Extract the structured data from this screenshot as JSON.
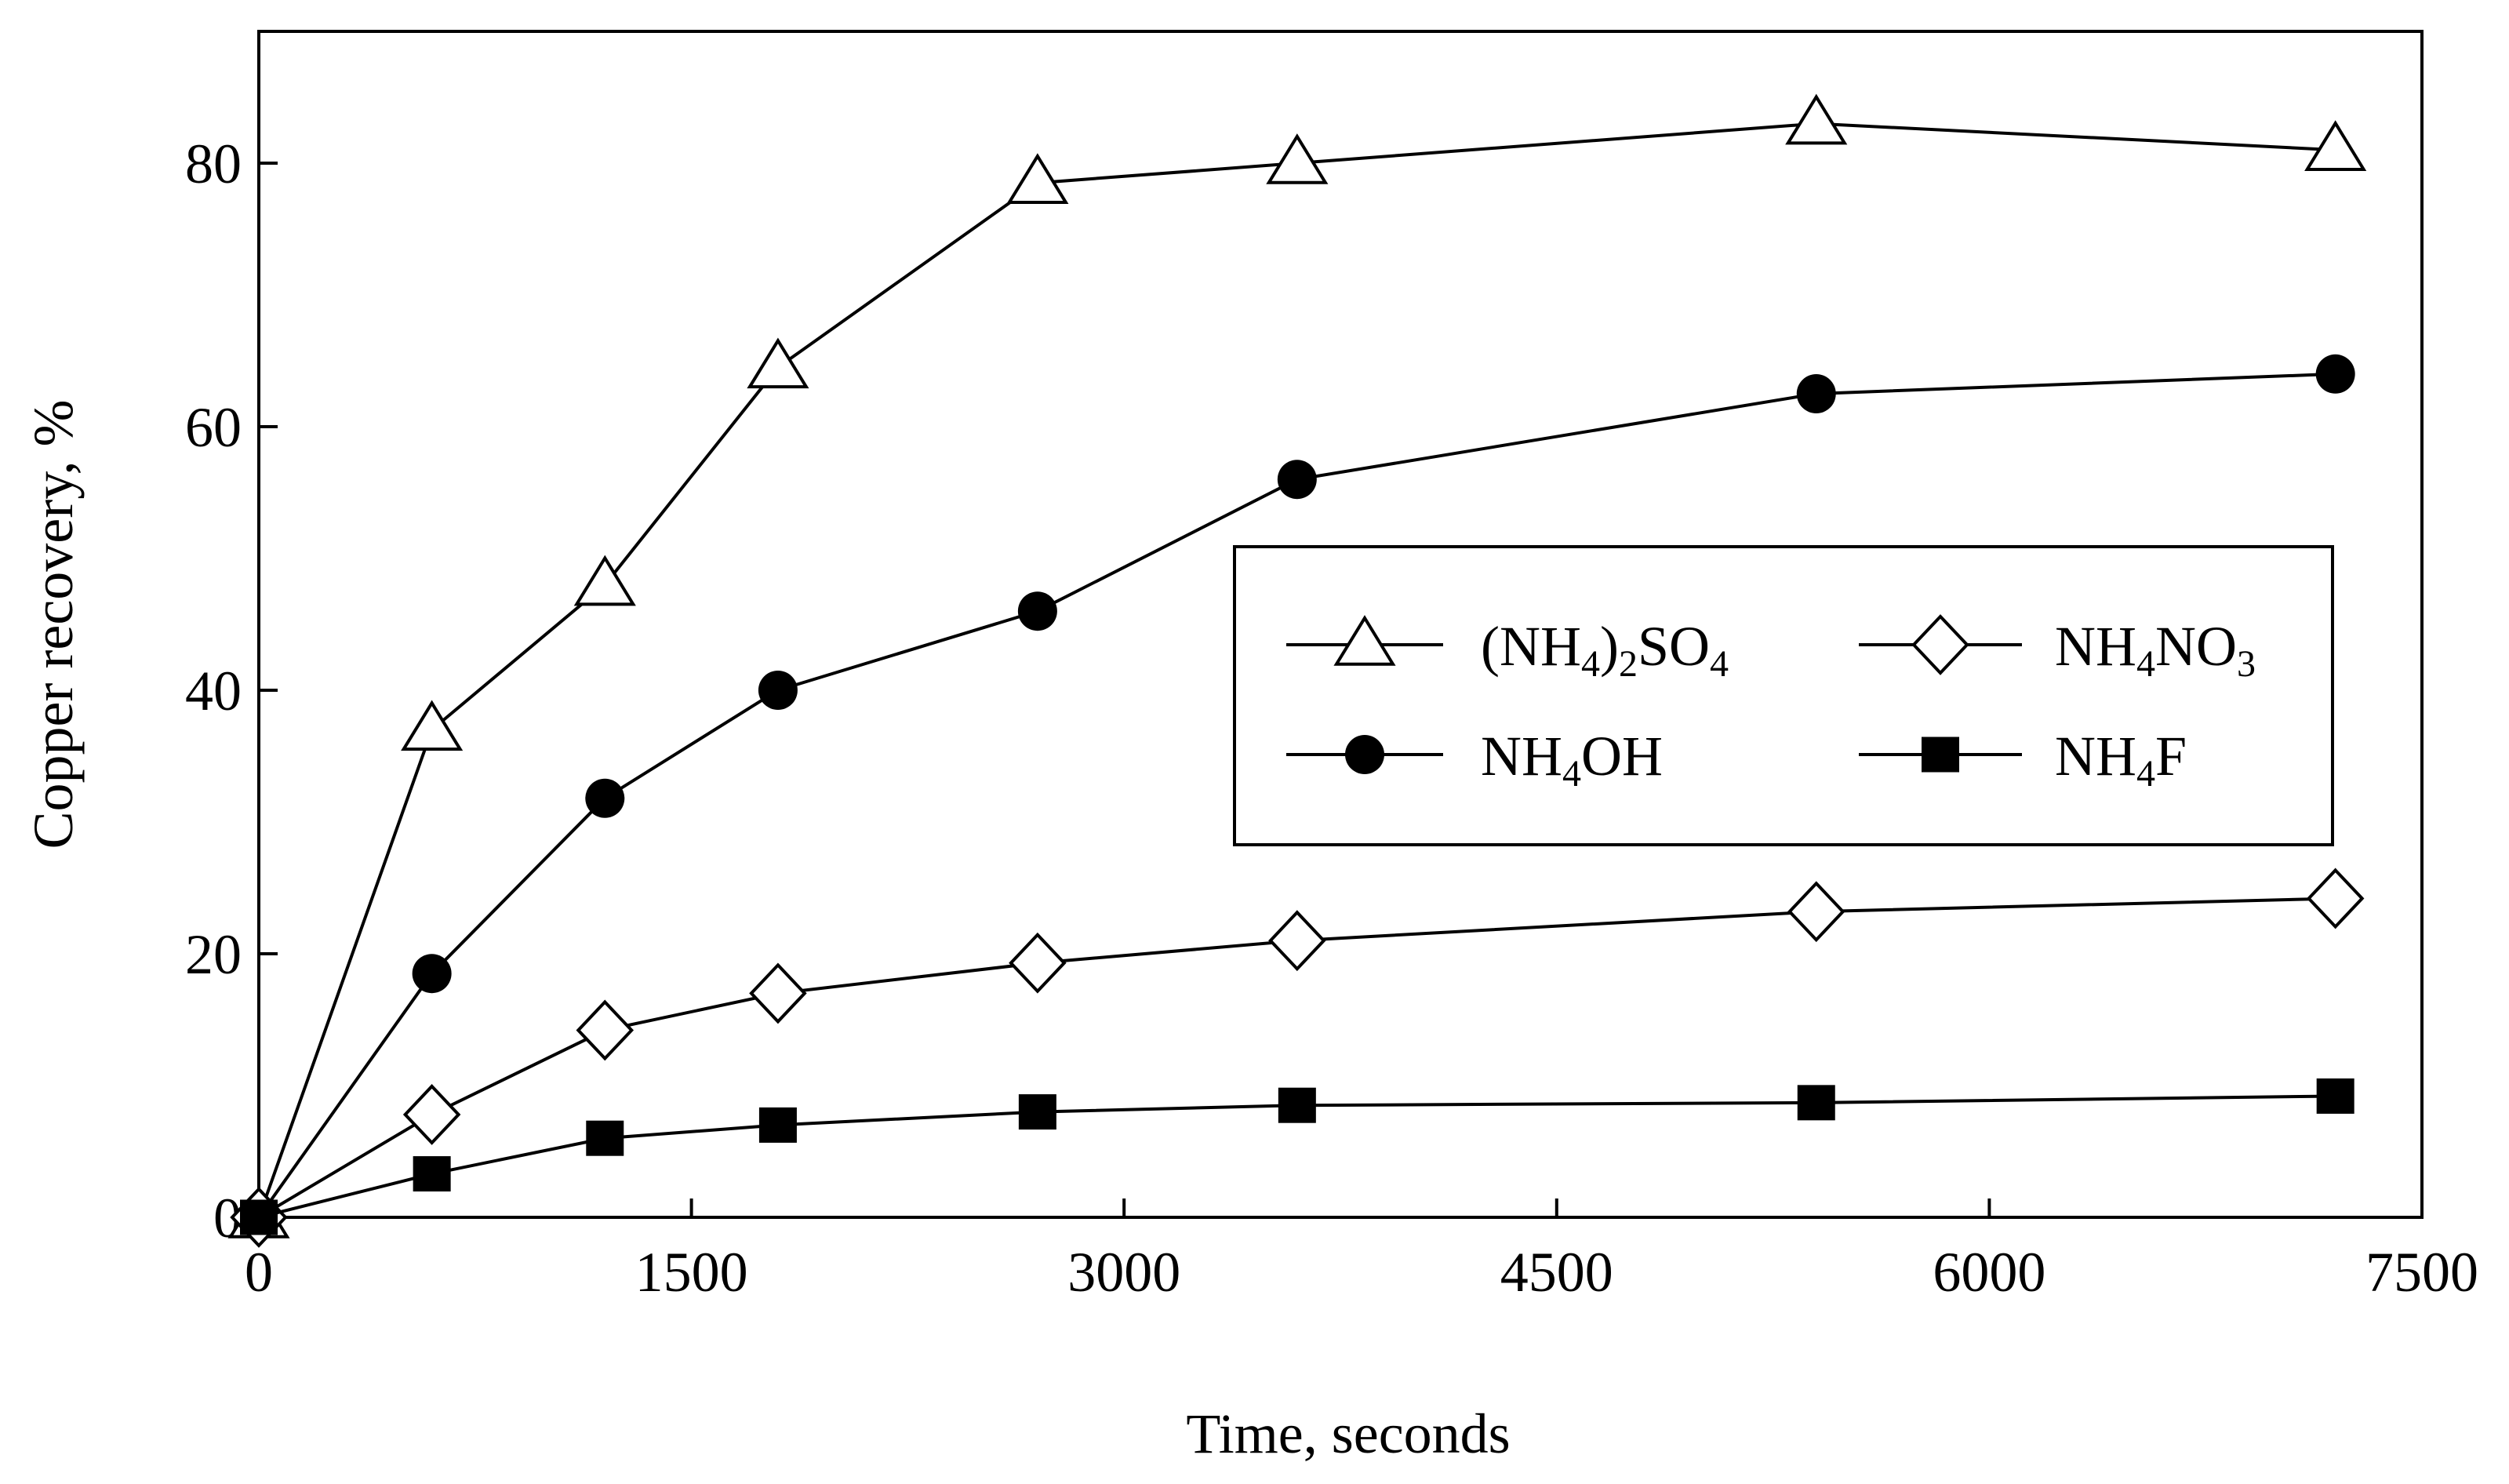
{
  "chart_data": {
    "type": "line",
    "title": "",
    "xlabel": "Time, seconds",
    "ylabel": "Copper recovery, %",
    "xlim": [
      0,
      7500
    ],
    "ylim": [
      0,
      90
    ],
    "xticks": [
      0,
      1500,
      3000,
      4500,
      6000,
      7500
    ],
    "yticks": [
      0,
      20,
      40,
      60,
      80
    ],
    "xtick_labels": [
      "0",
      "1500",
      "3000",
      "4500",
      "6000",
      "7500"
    ],
    "ytick_labels": [
      "0",
      "20",
      "40",
      "60",
      "80"
    ],
    "grid": false,
    "legend_position": "center-right",
    "series": [
      {
        "id": "nh4-2so4",
        "name": "(NH4)2SO4",
        "label_parts": [
          [
            "(NH",
            "normal"
          ],
          [
            "4",
            "sub"
          ],
          [
            ")",
            "normal"
          ],
          [
            "2",
            "sub"
          ],
          [
            "SO",
            "normal"
          ],
          [
            "4",
            "sub"
          ]
        ],
        "marker": "triangle-open",
        "x": [
          0,
          600,
          1200,
          1800,
          2700,
          3600,
          5400,
          7200
        ],
        "y": [
          0,
          37,
          48,
          64.5,
          78.5,
          80,
          83,
          81
        ]
      },
      {
        "id": "nh4oh",
        "name": "NH4OH",
        "label_parts": [
          [
            "NH",
            "normal"
          ],
          [
            "4",
            "sub"
          ],
          [
            "OH",
            "normal"
          ]
        ],
        "marker": "circle-filled",
        "x": [
          0,
          600,
          1200,
          1800,
          2700,
          3600,
          5400,
          7200
        ],
        "y": [
          0,
          18.5,
          31.8,
          40,
          46,
          56,
          62.5,
          64
        ]
      },
      {
        "id": "nh4no3",
        "name": "NH4NO3",
        "label_parts": [
          [
            "NH",
            "normal"
          ],
          [
            "4",
            "sub"
          ],
          [
            "NO",
            "normal"
          ],
          [
            "3",
            "sub"
          ]
        ],
        "marker": "diamond-open",
        "x": [
          0,
          600,
          1200,
          1800,
          2700,
          3600,
          5400,
          7200
        ],
        "y": [
          0,
          7.8,
          14.2,
          17,
          19.3,
          21,
          23.2,
          24.2
        ]
      },
      {
        "id": "nh4f",
        "name": "NH4F",
        "label_parts": [
          [
            "NH",
            "normal"
          ],
          [
            "4",
            "sub"
          ],
          [
            "F",
            "normal"
          ]
        ],
        "marker": "square-filled",
        "x": [
          0,
          600,
          1200,
          1800,
          2700,
          3600,
          5400,
          7200
        ],
        "y": [
          0,
          3.3,
          6,
          7,
          8,
          8.5,
          8.7,
          9.2
        ]
      }
    ],
    "legend_order": [
      "nh4-2so4",
      "nh4no3",
      "nh4oh",
      "nh4f"
    ]
  },
  "colors": {
    "ink": "#000000",
    "background": "#ffffff"
  }
}
